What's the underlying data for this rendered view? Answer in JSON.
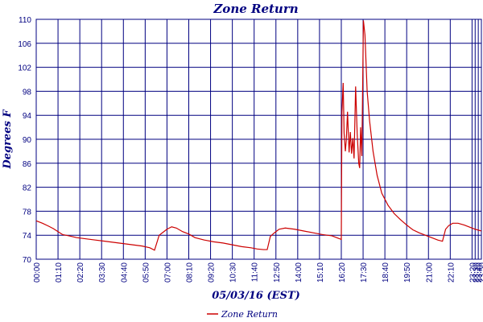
{
  "chart_data": {
    "type": "line",
    "title": "Zone Return",
    "xlabel": "05/03/16 (EST)",
    "ylabel": "Degrees F",
    "ylim": [
      70,
      110
    ],
    "yticks": [
      70,
      74,
      78,
      82,
      86,
      90,
      94,
      98,
      102,
      106,
      110
    ],
    "xlim_minutes": [
      0,
      1430
    ],
    "xticks": [
      {
        "label": "00:00",
        "minutes": 0
      },
      {
        "label": "01:10",
        "minutes": 70
      },
      {
        "label": "02:20",
        "minutes": 140
      },
      {
        "label": "03:30",
        "minutes": 210
      },
      {
        "label": "04:40",
        "minutes": 280
      },
      {
        "label": "05:50",
        "minutes": 350
      },
      {
        "label": "07:00",
        "minutes": 420
      },
      {
        "label": "08:10",
        "minutes": 490
      },
      {
        "label": "09:20",
        "minutes": 560
      },
      {
        "label": "10:30",
        "minutes": 630
      },
      {
        "label": "11:40",
        "minutes": 700
      },
      {
        "label": "12:50",
        "minutes": 770
      },
      {
        "label": "14:00",
        "minutes": 840
      },
      {
        "label": "15:10",
        "minutes": 910
      },
      {
        "label": "16:20",
        "minutes": 980
      },
      {
        "label": "17:30",
        "minutes": 1050
      },
      {
        "label": "18:40",
        "minutes": 1120
      },
      {
        "label": "19:50",
        "minutes": 1190
      },
      {
        "label": "21:00",
        "minutes": 1260
      },
      {
        "label": "22:10",
        "minutes": 1330
      },
      {
        "label": "23:20",
        "minutes": 1400
      },
      {
        "label": "23:30",
        "minutes": 1410
      },
      {
        "label": "23:40",
        "minutes": 1420
      },
      {
        "label": "23:50",
        "minutes": 1430
      }
    ],
    "grid": true,
    "legend": "bottom-center",
    "series": [
      {
        "name": "Zone Return",
        "color": "#cc0000",
        "points": [
          [
            0,
            76.4
          ],
          [
            20,
            76.0
          ],
          [
            40,
            75.5
          ],
          [
            55,
            75.1
          ],
          [
            70,
            74.6
          ],
          [
            85,
            74.1
          ],
          [
            105,
            73.9
          ],
          [
            130,
            73.6
          ],
          [
            160,
            73.4
          ],
          [
            190,
            73.2
          ],
          [
            220,
            73.0
          ],
          [
            250,
            72.8
          ],
          [
            280,
            72.6
          ],
          [
            310,
            72.4
          ],
          [
            340,
            72.2
          ],
          [
            365,
            71.9
          ],
          [
            380,
            71.5
          ],
          [
            395,
            74.0
          ],
          [
            405,
            74.4
          ],
          [
            420,
            75.0
          ],
          [
            435,
            75.4
          ],
          [
            450,
            75.2
          ],
          [
            470,
            74.6
          ],
          [
            490,
            74.2
          ],
          [
            510,
            73.6
          ],
          [
            540,
            73.2
          ],
          [
            570,
            72.9
          ],
          [
            600,
            72.7
          ],
          [
            630,
            72.4
          ],
          [
            660,
            72.1
          ],
          [
            690,
            71.9
          ],
          [
            710,
            71.7
          ],
          [
            730,
            71.6
          ],
          [
            742,
            71.6
          ],
          [
            752,
            73.8
          ],
          [
            765,
            74.4
          ],
          [
            780,
            75.0
          ],
          [
            800,
            75.2
          ],
          [
            830,
            75.0
          ],
          [
            860,
            74.7
          ],
          [
            890,
            74.4
          ],
          [
            920,
            74.1
          ],
          [
            950,
            73.9
          ],
          [
            970,
            73.5
          ],
          [
            980,
            73.3
          ],
          [
            982,
            94.5
          ],
          [
            986,
            99.4
          ],
          [
            989,
            91.0
          ],
          [
            993,
            88.0
          ],
          [
            996,
            89.8
          ],
          [
            1000,
            94.6
          ],
          [
            1005,
            87.8
          ],
          [
            1009,
            91.2
          ],
          [
            1013,
            87.6
          ],
          [
            1017,
            90.2
          ],
          [
            1021,
            86.8
          ],
          [
            1026,
            98.8
          ],
          [
            1031,
            91.0
          ],
          [
            1036,
            86.0
          ],
          [
            1039,
            85.2
          ],
          [
            1042,
            92.0
          ],
          [
            1046,
            87.2
          ],
          [
            1051,
            109.8
          ],
          [
            1056,
            107.4
          ],
          [
            1063,
            98.0
          ],
          [
            1071,
            93.0
          ],
          [
            1082,
            88.0
          ],
          [
            1095,
            84.0
          ],
          [
            1110,
            81.0
          ],
          [
            1130,
            79.0
          ],
          [
            1150,
            77.6
          ],
          [
            1170,
            76.6
          ],
          [
            1190,
            75.7
          ],
          [
            1210,
            74.9
          ],
          [
            1230,
            74.4
          ],
          [
            1250,
            74.0
          ],
          [
            1270,
            73.6
          ],
          [
            1290,
            73.2
          ],
          [
            1305,
            73.0
          ],
          [
            1315,
            75.0
          ],
          [
            1325,
            75.6
          ],
          [
            1338,
            76.0
          ],
          [
            1355,
            76.0
          ],
          [
            1375,
            75.7
          ],
          [
            1395,
            75.3
          ],
          [
            1410,
            75.0
          ],
          [
            1430,
            74.7
          ]
        ]
      }
    ]
  }
}
